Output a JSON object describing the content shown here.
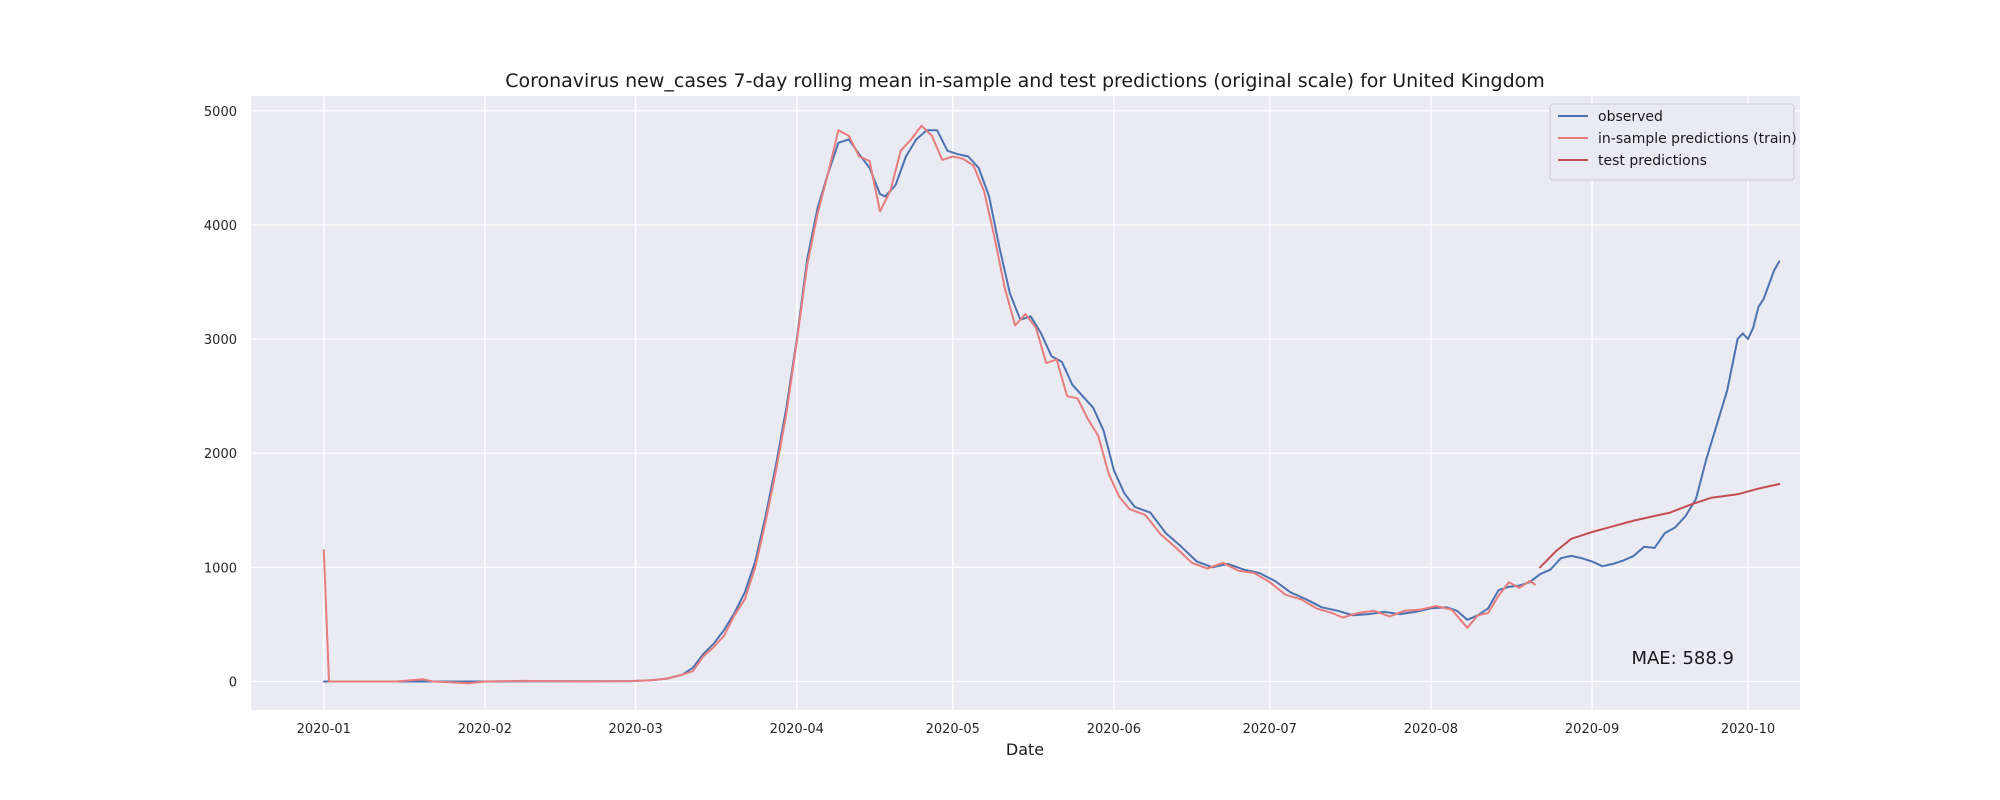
{
  "chart_data": {
    "type": "line",
    "title": "Coronavirus new_cases 7-day rolling mean in-sample and test predictions (original scale) for United Kingdom",
    "xlabel": "Date",
    "ylabel": "",
    "xlim": [
      "2019-12-18",
      "2020-10-11"
    ],
    "ylim": [
      -250,
      5130
    ],
    "grid": true,
    "legend_position": "top-right",
    "x_ticks": [
      "2020-01-01",
      "2020-02-01",
      "2020-03-01",
      "2020-04-01",
      "2020-05-01",
      "2020-06-01",
      "2020-07-01",
      "2020-08-01",
      "2020-09-01",
      "2020-10-01"
    ],
    "x_tick_labels": [
      "2020-01",
      "2020-02",
      "2020-03",
      "2020-04",
      "2020-05",
      "2020-06",
      "2020-07",
      "2020-08",
      "2020-09",
      "2020-10"
    ],
    "y_ticks": [
      0,
      1000,
      2000,
      3000,
      4000,
      5000
    ],
    "y_tick_labels": [
      "0",
      "1000",
      "2000",
      "3000",
      "4000",
      "5000"
    ],
    "annotation": "MAE: 588.9",
    "series": [
      {
        "name": "observed",
        "color": "#4c72b0",
        "points": [
          [
            "2020-01-01",
            0
          ],
          [
            "2020-01-15",
            0
          ],
          [
            "2020-01-31",
            0
          ],
          [
            "2020-02-15",
            2
          ],
          [
            "2020-02-29",
            3
          ],
          [
            "2020-03-04",
            10
          ],
          [
            "2020-03-07",
            25
          ],
          [
            "2020-03-10",
            60
          ],
          [
            "2020-03-12",
            120
          ],
          [
            "2020-03-14",
            240
          ],
          [
            "2020-03-16",
            330
          ],
          [
            "2020-03-18",
            450
          ],
          [
            "2020-03-20",
            600
          ],
          [
            "2020-03-22",
            780
          ],
          [
            "2020-03-24",
            1050
          ],
          [
            "2020-03-26",
            1450
          ],
          [
            "2020-03-28",
            1900
          ],
          [
            "2020-03-30",
            2400
          ],
          [
            "2020-04-01",
            3000
          ],
          [
            "2020-04-03",
            3700
          ],
          [
            "2020-04-05",
            4150
          ],
          [
            "2020-04-07",
            4450
          ],
          [
            "2020-04-09",
            4720
          ],
          [
            "2020-04-11",
            4750
          ],
          [
            "2020-04-13",
            4620
          ],
          [
            "2020-04-15",
            4500
          ],
          [
            "2020-04-17",
            4270
          ],
          [
            "2020-04-18",
            4250
          ],
          [
            "2020-04-20",
            4350
          ],
          [
            "2020-04-22",
            4600
          ],
          [
            "2020-04-24",
            4750
          ],
          [
            "2020-04-26",
            4830
          ],
          [
            "2020-04-28",
            4830
          ],
          [
            "2020-04-30",
            4650
          ],
          [
            "2020-05-02",
            4620
          ],
          [
            "2020-05-04",
            4600
          ],
          [
            "2020-05-06",
            4500
          ],
          [
            "2020-05-08",
            4250
          ],
          [
            "2020-05-10",
            3800
          ],
          [
            "2020-05-12",
            3400
          ],
          [
            "2020-05-14",
            3170
          ],
          [
            "2020-05-16",
            3200
          ],
          [
            "2020-05-18",
            3050
          ],
          [
            "2020-05-20",
            2850
          ],
          [
            "2020-05-22",
            2800
          ],
          [
            "2020-05-24",
            2600
          ],
          [
            "2020-05-26",
            2500
          ],
          [
            "2020-05-28",
            2400
          ],
          [
            "2020-05-30",
            2200
          ],
          [
            "2020-06-01",
            1850
          ],
          [
            "2020-06-03",
            1650
          ],
          [
            "2020-06-05",
            1530
          ],
          [
            "2020-06-08",
            1480
          ],
          [
            "2020-06-11",
            1300
          ],
          [
            "2020-06-14",
            1180
          ],
          [
            "2020-06-17",
            1050
          ],
          [
            "2020-06-20",
            1000
          ],
          [
            "2020-06-23",
            1030
          ],
          [
            "2020-06-26",
            980
          ],
          [
            "2020-06-29",
            950
          ],
          [
            "2020-07-02",
            880
          ],
          [
            "2020-07-05",
            780
          ],
          [
            "2020-07-08",
            720
          ],
          [
            "2020-07-11",
            650
          ],
          [
            "2020-07-14",
            620
          ],
          [
            "2020-07-17",
            580
          ],
          [
            "2020-07-20",
            590
          ],
          [
            "2020-07-23",
            610
          ],
          [
            "2020-07-26",
            590
          ],
          [
            "2020-07-29",
            610
          ],
          [
            "2020-08-01",
            640
          ],
          [
            "2020-08-04",
            650
          ],
          [
            "2020-08-06",
            620
          ],
          [
            "2020-08-08",
            540
          ],
          [
            "2020-08-10",
            580
          ],
          [
            "2020-08-12",
            640
          ],
          [
            "2020-08-14",
            800
          ],
          [
            "2020-08-16",
            830
          ],
          [
            "2020-08-18",
            840
          ],
          [
            "2020-08-20",
            870
          ],
          [
            "2020-08-22",
            940
          ],
          [
            "2020-08-24",
            980
          ],
          [
            "2020-08-26",
            1080
          ],
          [
            "2020-08-28",
            1100
          ],
          [
            "2020-08-30",
            1080
          ],
          [
            "2020-09-01",
            1050
          ],
          [
            "2020-09-03",
            1010
          ],
          [
            "2020-09-05",
            1030
          ],
          [
            "2020-09-07",
            1060
          ],
          [
            "2020-09-09",
            1100
          ],
          [
            "2020-09-11",
            1180
          ],
          [
            "2020-09-13",
            1170
          ],
          [
            "2020-09-15",
            1300
          ],
          [
            "2020-09-17",
            1350
          ],
          [
            "2020-09-19",
            1450
          ],
          [
            "2020-09-21",
            1600
          ],
          [
            "2020-09-23",
            1950
          ],
          [
            "2020-09-25",
            2250
          ],
          [
            "2020-09-27",
            2550
          ],
          [
            "2020-09-29",
            3000
          ],
          [
            "2020-09-30",
            3050
          ],
          [
            "2020-10-01",
            3000
          ],
          [
            "2020-10-02",
            3100
          ],
          [
            "2020-10-03",
            3280
          ],
          [
            "2020-10-04",
            3350
          ],
          [
            "2020-10-06",
            3600
          ],
          [
            "2020-10-07",
            3680
          ]
        ]
      },
      {
        "name": "in-sample predictions (train)",
        "color": "#e77c7c",
        "points": [
          [
            "2020-01-01",
            1150
          ],
          [
            "2020-01-02",
            0
          ],
          [
            "2020-01-15",
            0
          ],
          [
            "2020-01-20",
            20
          ],
          [
            "2020-01-22",
            0
          ],
          [
            "2020-01-29",
            -15
          ],
          [
            "2020-02-01",
            0
          ],
          [
            "2020-02-08",
            5
          ],
          [
            "2020-02-20",
            0
          ],
          [
            "2020-02-29",
            3
          ],
          [
            "2020-03-04",
            10
          ],
          [
            "2020-03-07",
            25
          ],
          [
            "2020-03-10",
            60
          ],
          [
            "2020-03-12",
            90
          ],
          [
            "2020-03-14",
            220
          ],
          [
            "2020-03-16",
            300
          ],
          [
            "2020-03-18",
            400
          ],
          [
            "2020-03-20",
            580
          ],
          [
            "2020-03-22",
            720
          ],
          [
            "2020-03-24",
            1000
          ],
          [
            "2020-03-26",
            1400
          ],
          [
            "2020-03-28",
            1850
          ],
          [
            "2020-03-30",
            2350
          ],
          [
            "2020-04-01",
            2980
          ],
          [
            "2020-04-03",
            3650
          ],
          [
            "2020-04-05",
            4100
          ],
          [
            "2020-04-07",
            4450
          ],
          [
            "2020-04-09",
            4830
          ],
          [
            "2020-04-11",
            4780
          ],
          [
            "2020-04-13",
            4600
          ],
          [
            "2020-04-15",
            4560
          ],
          [
            "2020-04-17",
            4120
          ],
          [
            "2020-04-19",
            4300
          ],
          [
            "2020-04-21",
            4650
          ],
          [
            "2020-04-23",
            4750
          ],
          [
            "2020-04-25",
            4870
          ],
          [
            "2020-04-27",
            4780
          ],
          [
            "2020-04-29",
            4570
          ],
          [
            "2020-05-01",
            4600
          ],
          [
            "2020-05-03",
            4580
          ],
          [
            "2020-05-05",
            4520
          ],
          [
            "2020-05-07",
            4300
          ],
          [
            "2020-05-09",
            3900
          ],
          [
            "2020-05-11",
            3450
          ],
          [
            "2020-05-13",
            3120
          ],
          [
            "2020-05-15",
            3220
          ],
          [
            "2020-05-17",
            3100
          ],
          [
            "2020-05-19",
            2790
          ],
          [
            "2020-05-21",
            2820
          ],
          [
            "2020-05-23",
            2500
          ],
          [
            "2020-05-25",
            2480
          ],
          [
            "2020-05-27",
            2300
          ],
          [
            "2020-05-29",
            2150
          ],
          [
            "2020-05-31",
            1820
          ],
          [
            "2020-06-02",
            1620
          ],
          [
            "2020-06-04",
            1510
          ],
          [
            "2020-06-07",
            1460
          ],
          [
            "2020-06-10",
            1290
          ],
          [
            "2020-06-13",
            1170
          ],
          [
            "2020-06-16",
            1040
          ],
          [
            "2020-06-19",
            990
          ],
          [
            "2020-06-22",
            1040
          ],
          [
            "2020-06-25",
            970
          ],
          [
            "2020-06-28",
            950
          ],
          [
            "2020-07-01",
            870
          ],
          [
            "2020-07-04",
            760
          ],
          [
            "2020-07-07",
            720
          ],
          [
            "2020-07-10",
            640
          ],
          [
            "2020-07-13",
            600
          ],
          [
            "2020-07-15",
            560
          ],
          [
            "2020-07-18",
            600
          ],
          [
            "2020-07-21",
            620
          ],
          [
            "2020-07-24",
            570
          ],
          [
            "2020-07-27",
            620
          ],
          [
            "2020-07-30",
            630
          ],
          [
            "2020-08-02",
            660
          ],
          [
            "2020-08-05",
            630
          ],
          [
            "2020-08-08",
            470
          ],
          [
            "2020-08-10",
            580
          ],
          [
            "2020-08-12",
            600
          ],
          [
            "2020-08-14",
            750
          ],
          [
            "2020-08-16",
            870
          ],
          [
            "2020-08-18",
            820
          ],
          [
            "2020-08-20",
            880
          ],
          [
            "2020-08-21",
            850
          ]
        ]
      },
      {
        "name": "test predictions",
        "color": "#c44e52",
        "points": [
          [
            "2020-08-22",
            1000
          ],
          [
            "2020-08-25",
            1140
          ],
          [
            "2020-08-28",
            1250
          ],
          [
            "2020-09-01",
            1310
          ],
          [
            "2020-09-05",
            1360
          ],
          [
            "2020-09-09",
            1410
          ],
          [
            "2020-09-13",
            1450
          ],
          [
            "2020-09-16",
            1480
          ],
          [
            "2020-09-20",
            1550
          ],
          [
            "2020-09-24",
            1610
          ],
          [
            "2020-09-29",
            1640
          ],
          [
            "2020-10-03",
            1690
          ],
          [
            "2020-10-07",
            1730
          ]
        ]
      }
    ]
  }
}
